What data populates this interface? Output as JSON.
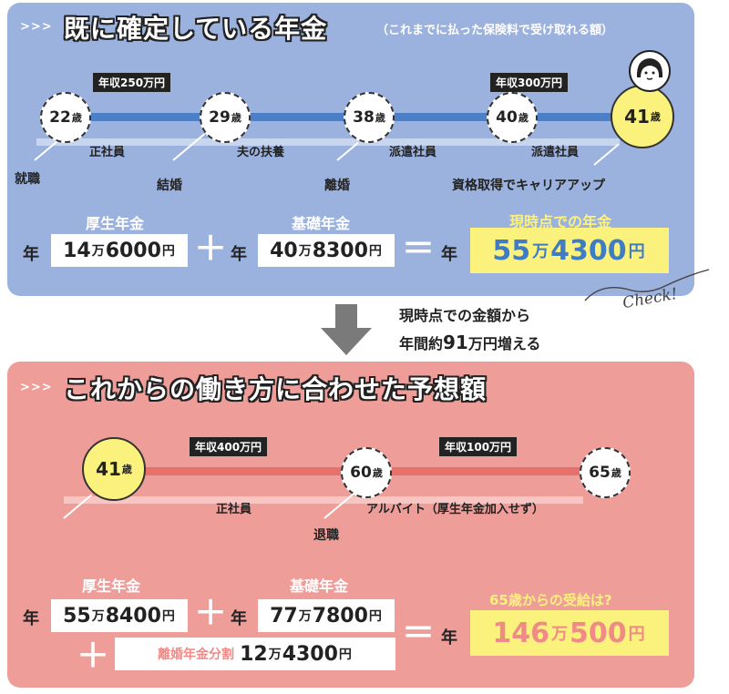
{
  "section1": {
    "arrows": ">>>",
    "title": "既に確定している年金",
    "note": "（これまでに払った保険料で受け取れる額）",
    "incomes": [
      "年収250万円",
      "年収300万円"
    ],
    "ages": [
      {
        "num": "22",
        "unit": "歳"
      },
      {
        "num": "29",
        "unit": "歳"
      },
      {
        "num": "38",
        "unit": "歳"
      },
      {
        "num": "40",
        "unit": "歳"
      },
      {
        "num": "41",
        "unit": "歳"
      }
    ],
    "jobs": [
      "正社員",
      "夫の扶養",
      "派遣社員",
      "派遣社員"
    ],
    "events": [
      "就職",
      "結婚",
      "離婚",
      "資格取得でキャリアアップ"
    ],
    "labels": {
      "kosei": "厚生年金",
      "kiso": "基礎年金",
      "current": "現時点での年金"
    },
    "nen": "年",
    "kosei_amount": {
      "a": "14",
      "man": "万",
      "b": "6000",
      "yen": "円"
    },
    "kiso_amount": {
      "a": "40",
      "man": "万",
      "b": "8300",
      "yen": "円"
    },
    "result": {
      "a": "55",
      "man": "万",
      "b": "4300",
      "yen": "円"
    },
    "plus": "＋",
    "equals": "＝"
  },
  "middle": {
    "line1": "現時点での金額から",
    "line2_pre": "年間約",
    "line2_num": "91",
    "line2_post": "万円増える",
    "check": "Check!"
  },
  "section2": {
    "arrows": ">>>",
    "title": "これからの働き方に合わせた予想額",
    "incomes": [
      "年収400万円",
      "年収100万円"
    ],
    "ages": [
      {
        "num": "41",
        "unit": "歳"
      },
      {
        "num": "60",
        "unit": "歳"
      },
      {
        "num": "65",
        "unit": "歳"
      }
    ],
    "jobs": [
      "正社員",
      "アルバイト（厚生年金加入せず）"
    ],
    "events": [
      "退職"
    ],
    "labels": {
      "kosei": "厚生年金",
      "kiso": "基礎年金",
      "q": "65歳からの受給は?",
      "divorce": "離婚年金分割"
    },
    "nen": "年",
    "kosei_amount": {
      "a": "55",
      "man": "万",
      "b": "8400",
      "yen": "円"
    },
    "kiso_amount": {
      "a": "77",
      "man": "万",
      "b": "7800",
      "yen": "円"
    },
    "divorce_amount": {
      "a": "12",
      "man": "万",
      "b": "4300",
      "yen": "円"
    },
    "result": {
      "a": "146",
      "man": "万",
      "b": "500",
      "yen": "円"
    },
    "plus": "＋",
    "equals": "＝"
  },
  "colors": {
    "panel1": "#9bb1de",
    "panel2": "#ef9d99",
    "timeline1": "#4c7fc6",
    "timeline2": "#e6716c",
    "highlight": "#fbf27d",
    "result1_text": "#3f7cc4",
    "result2_text": "#f08a86"
  },
  "icons": [
    "avatar-woman-icon",
    "down-arrow-icon"
  ]
}
